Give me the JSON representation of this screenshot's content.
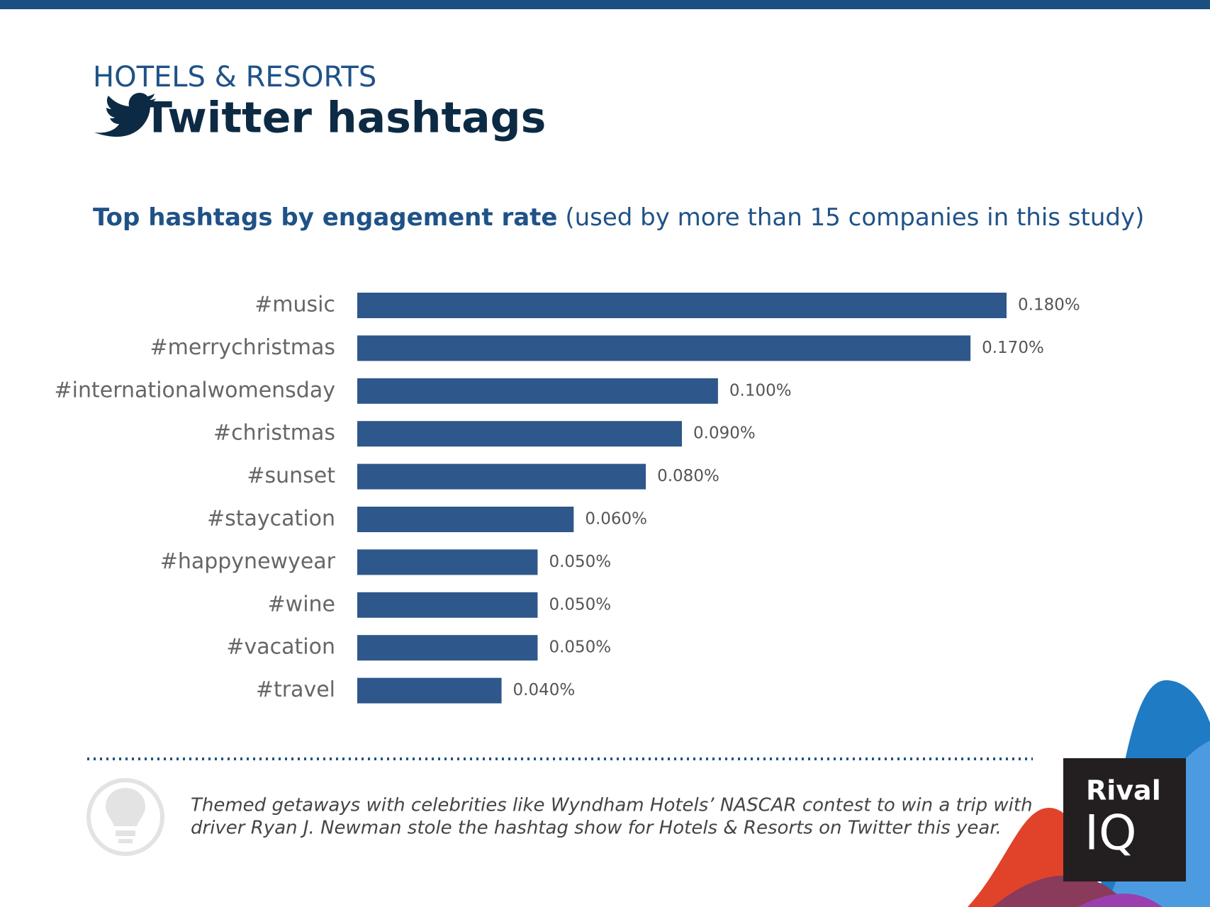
{
  "header": {
    "kicker": "HOTELS & RESORTS",
    "title": "Twitter hashtags"
  },
  "chart_data": {
    "type": "bar",
    "orientation": "horizontal",
    "title": "Top hashtags by engagement rate",
    "subtitle": "(used by more than 15 companies in this study)",
    "categories": [
      "#music",
      "#merrychristmas",
      "#internationalwomensday",
      "#christmas",
      "#sunset",
      "#staycation",
      "#happynewyear",
      "#wine",
      "#vacation",
      "#travel"
    ],
    "values": [
      0.18,
      0.17,
      0.1,
      0.09,
      0.08,
      0.06,
      0.05,
      0.05,
      0.05,
      0.04
    ],
    "value_labels": [
      "0.180%",
      "0.170%",
      "0.100%",
      "0.090%",
      "0.080%",
      "0.060%",
      "0.050%",
      "0.050%",
      "0.050%",
      "0.040%"
    ],
    "color": "#2e578b"
  },
  "footnote": {
    "lines": [
      "Themed getaways with celebrities like Wyndham Hotels’ NASCAR contest to win a trip with",
      "driver Ryan J. Newman stole the hashtag show for Hotels & Resorts on Twitter this year."
    ]
  },
  "logo": {
    "line1": "Rival",
    "line2": "IQ"
  }
}
